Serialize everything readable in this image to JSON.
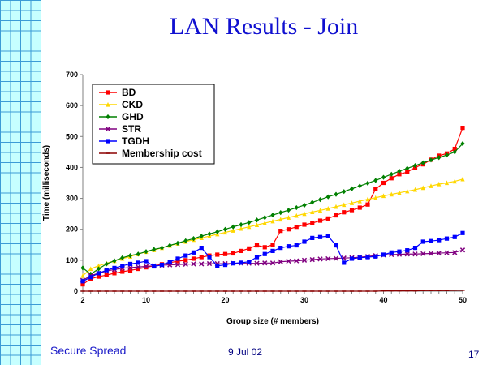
{
  "slide": {
    "title": "LAN Results - Join",
    "footer_left": "Secure Spread",
    "footer_date": "9 Jul 02",
    "page_number": "17"
  },
  "chart_data": {
    "type": "line",
    "title": "",
    "xlabel": "Group size (# members)",
    "ylabel": "Time (milliseconds)",
    "xlim": [
      2,
      50
    ],
    "ylim": [
      0,
      700
    ],
    "xticks": [
      2,
      10,
      20,
      30,
      40,
      50
    ],
    "yticks": [
      0,
      100,
      200,
      300,
      400,
      500,
      600,
      700
    ],
    "grid": false,
    "legend_position": "top-left",
    "x": [
      2,
      3,
      4,
      5,
      6,
      7,
      8,
      9,
      10,
      11,
      12,
      13,
      14,
      15,
      16,
      17,
      18,
      19,
      20,
      21,
      22,
      23,
      24,
      25,
      26,
      27,
      28,
      29,
      30,
      31,
      32,
      33,
      34,
      35,
      36,
      37,
      38,
      39,
      40,
      41,
      42,
      43,
      44,
      45,
      46,
      47,
      48,
      49,
      50
    ],
    "series": [
      {
        "name": "BD",
        "color": "#ff0000",
        "marker": "square",
        "values": [
          22,
          40,
          47,
          52,
          58,
          63,
          67,
          72,
          77,
          82,
          87,
          92,
          97,
          100,
          105,
          110,
          115,
          118,
          120,
          122,
          130,
          138,
          148,
          142,
          150,
          195,
          200,
          208,
          215,
          220,
          228,
          235,
          245,
          255,
          262,
          270,
          280,
          330,
          350,
          365,
          378,
          385,
          400,
          410,
          425,
          438,
          445,
          460,
          528
        ]
      },
      {
        "name": "CKD",
        "color": "#ffd700",
        "marker": "triangle",
        "values": [
          50,
          72,
          82,
          90,
          98,
          105,
          112,
          120,
          127,
          133,
          140,
          147,
          154,
          160,
          166,
          172,
          178,
          184,
          190,
          196,
          202,
          208,
          214,
          220,
          226,
          232,
          238,
          244,
          250,
          256,
          261,
          267,
          273,
          279,
          285,
          291,
          297,
          302,
          308,
          313,
          318,
          323,
          328,
          334,
          340,
          346,
          350,
          355,
          362
        ]
      },
      {
        "name": "GHD",
        "color": "#008000",
        "marker": "diamond",
        "values": [
          75,
          55,
          72,
          88,
          98,
          108,
          115,
          120,
          128,
          135,
          140,
          148,
          155,
          163,
          170,
          178,
          185,
          192,
          200,
          208,
          215,
          222,
          230,
          238,
          246,
          254,
          262,
          270,
          278,
          287,
          296,
          305,
          313,
          322,
          331,
          340,
          349,
          358,
          368,
          378,
          388,
          397,
          406,
          415,
          424,
          432,
          440,
          450,
          477
        ]
      },
      {
        "name": "STR",
        "color": "#800080",
        "marker": "x",
        "values": [
          35,
          50,
          58,
          65,
          70,
          74,
          76,
          78,
          80,
          82,
          84,
          85,
          86,
          87,
          88,
          88,
          89,
          89,
          89,
          90,
          90,
          90,
          90,
          91,
          91,
          95,
          97,
          98,
          100,
          102,
          104,
          105,
          106,
          107,
          108,
          110,
          112,
          115,
          117,
          118,
          119,
          120,
          120,
          121,
          122,
          123,
          124,
          125,
          133
        ]
      },
      {
        "name": "TGDH",
        "color": "#0000ff",
        "marker": "square",
        "values": [
          32,
          45,
          58,
          68,
          75,
          82,
          88,
          92,
          97,
          80,
          85,
          95,
          105,
          115,
          125,
          140,
          110,
          82,
          85,
          90,
          92,
          95,
          110,
          120,
          130,
          140,
          145,
          148,
          160,
          172,
          175,
          178,
          148,
          92,
          105,
          108,
          110,
          112,
          118,
          125,
          128,
          132,
          140,
          160,
          162,
          165,
          170,
          175,
          188
        ]
      },
      {
        "name": "Membership cost",
        "color": "#8b0000",
        "marker": "dash",
        "values": [
          0,
          0,
          0,
          0,
          0,
          0,
          0,
          0,
          0,
          0,
          0,
          0,
          0,
          0,
          0,
          0,
          0,
          0,
          0,
          0,
          0,
          0,
          0,
          0,
          0,
          0,
          0,
          0,
          0,
          0,
          0,
          0,
          0,
          0,
          0,
          0,
          0,
          0,
          1,
          1,
          1,
          1,
          1,
          2,
          2,
          2,
          2,
          3,
          3
        ]
      }
    ]
  }
}
